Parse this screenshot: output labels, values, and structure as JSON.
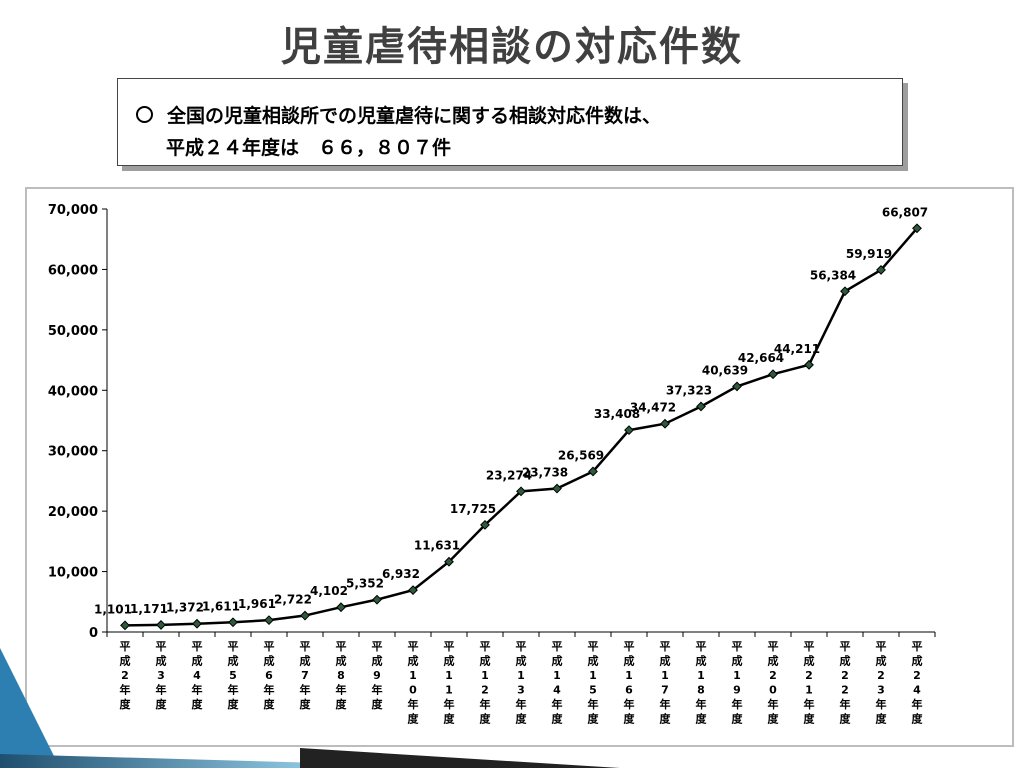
{
  "slide": {
    "title": "児童虐待相談の対応件数"
  },
  "callout": {
    "line1": "全国の児童相談所での児童虐待に関する相談対応件数は、",
    "line2": "平成２４年度は　６６，８０７件"
  },
  "chart_data": {
    "type": "line",
    "categories": [
      "平成2年度",
      "平成3年度",
      "平成4年度",
      "平成5年度",
      "平成6年度",
      "平成7年度",
      "平成8年度",
      "平成9年度",
      "平成10年度",
      "平成11年度",
      "平成12年度",
      "平成13年度",
      "平成14年度",
      "平成15年度",
      "平成16年度",
      "平成17年度",
      "平成18年度",
      "平成19年度",
      "平成20年度",
      "平成21年度",
      "平成22年度",
      "平成23年度",
      "平成24年度"
    ],
    "tick_labels": [
      [
        "平",
        "成",
        "2",
        "年",
        "度"
      ],
      [
        "平",
        "成",
        "3",
        "年",
        "度"
      ],
      [
        "平",
        "成",
        "4",
        "年",
        "度"
      ],
      [
        "平",
        "成",
        "5",
        "年",
        "度"
      ],
      [
        "平",
        "成",
        "6",
        "年",
        "度"
      ],
      [
        "平",
        "成",
        "7",
        "年",
        "度"
      ],
      [
        "平",
        "成",
        "8",
        "年",
        "度"
      ],
      [
        "平",
        "成",
        "9",
        "年",
        "度"
      ],
      [
        "平",
        "成",
        "1",
        "0",
        "年",
        "度"
      ],
      [
        "平",
        "成",
        "1",
        "1",
        "年",
        "度"
      ],
      [
        "平",
        "成",
        "1",
        "2",
        "年",
        "度"
      ],
      [
        "平",
        "成",
        "1",
        "3",
        "年",
        "度"
      ],
      [
        "平",
        "成",
        "1",
        "4",
        "年",
        "度"
      ],
      [
        "平",
        "成",
        "1",
        "5",
        "年",
        "度"
      ],
      [
        "平",
        "成",
        "1",
        "6",
        "年",
        "度"
      ],
      [
        "平",
        "成",
        "1",
        "7",
        "年",
        "度"
      ],
      [
        "平",
        "成",
        "1",
        "8",
        "年",
        "度"
      ],
      [
        "平",
        "成",
        "1",
        "9",
        "年",
        "度"
      ],
      [
        "平",
        "成",
        "2",
        "0",
        "年",
        "度"
      ],
      [
        "平",
        "成",
        "2",
        "1",
        "年",
        "度"
      ],
      [
        "平",
        "成",
        "2",
        "2",
        "年",
        "度"
      ],
      [
        "平",
        "成",
        "2",
        "3",
        "年",
        "度"
      ],
      [
        "平",
        "成",
        "2",
        "4",
        "年",
        "度"
      ]
    ],
    "values": [
      1101,
      1171,
      1372,
      1611,
      1961,
      2722,
      4102,
      5352,
      6932,
      11631,
      17725,
      23274,
      23738,
      26569,
      33408,
      34472,
      37323,
      40639,
      42664,
      44211,
      56384,
      59919,
      66807
    ],
    "data_labels": [
      "1,101",
      "1,171",
      "1,372",
      "1,611",
      "1,961",
      "2,722",
      "4,102",
      "5,352",
      "6,932",
      "11,631",
      "17,725",
      "23,274",
      "23,738",
      "26,569",
      "33,408",
      "34,472",
      "37,323",
      "40,639",
      "42,664",
      "44,211",
      "56,384",
      "59,919",
      "66,807"
    ],
    "y_ticks": [
      0,
      10000,
      20000,
      30000,
      40000,
      50000,
      60000,
      70000
    ],
    "y_tick_labels": [
      "0",
      "10,000",
      "20,000",
      "30,000",
      "40,000",
      "50,000",
      "60,000",
      "70,000"
    ],
    "ylim": [
      0,
      70000
    ],
    "grid": false,
    "legend": "none",
    "line_color": "#000000",
    "marker": "diamond",
    "title": "",
    "xlabel": "",
    "ylabel": ""
  }
}
